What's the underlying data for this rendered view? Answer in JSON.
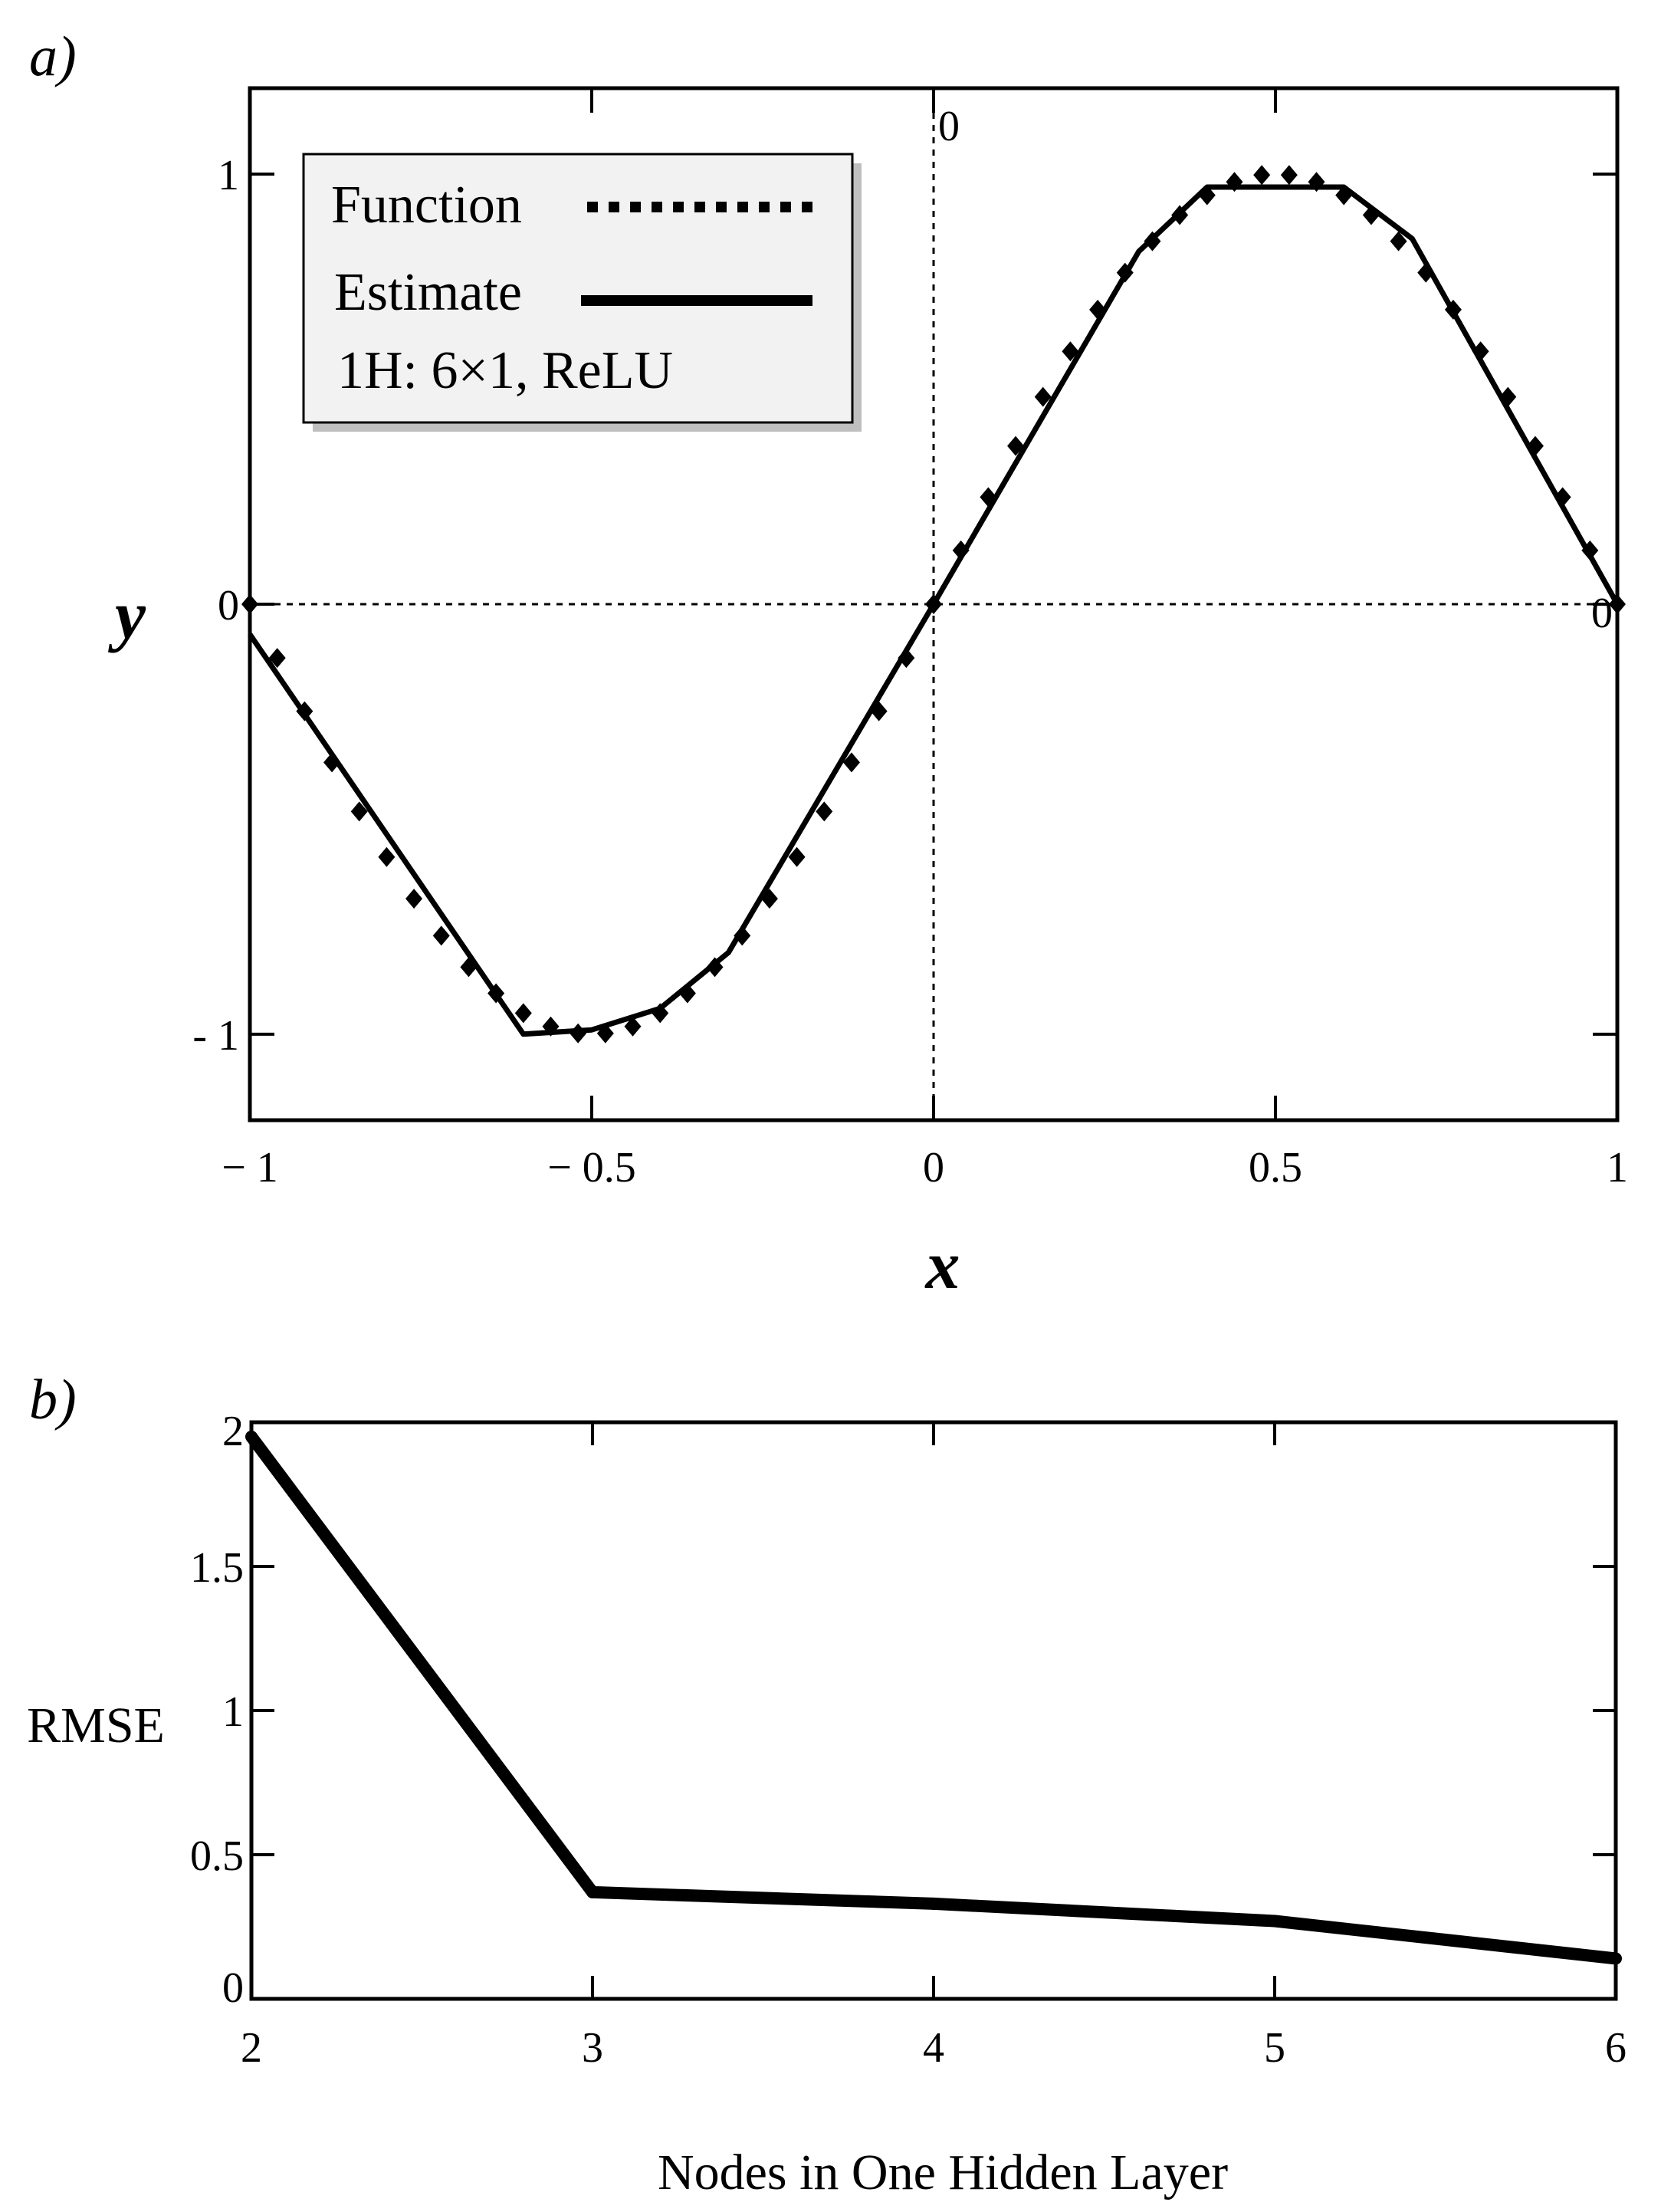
{
  "chart_data": [
    {
      "panel": "a)",
      "type": "line",
      "xlabel": "x",
      "ylabel": "y",
      "xlim": [
        -1,
        1
      ],
      "ylim": [
        -1.2,
        1.2
      ],
      "xticks": [
        "− 1",
        "− 0.5",
        "0",
        "0.5",
        "1"
      ],
      "yticks": [
        "- 1",
        "0",
        "1"
      ],
      "zero_markers": [
        "0",
        "0"
      ],
      "grid": false,
      "legend_position": "top-left",
      "legend": {
        "entries": [
          "Function",
          "Estimate"
        ],
        "note": "1H: 6×1, ReLU"
      },
      "series": [
        {
          "name": "Function",
          "style": "dotted",
          "x": [
            -1,
            -0.96,
            -0.92,
            -0.88,
            -0.84,
            -0.8,
            -0.76,
            -0.72,
            -0.68,
            -0.64,
            -0.6,
            -0.56,
            -0.52,
            -0.48,
            -0.44,
            -0.4,
            -0.36,
            -0.32,
            -0.28,
            -0.24,
            -0.2,
            -0.16,
            -0.12,
            -0.08,
            -0.04,
            0,
            0.04,
            0.08,
            0.12,
            0.16,
            0.2,
            0.24,
            0.28,
            0.32,
            0.36,
            0.4,
            0.44,
            0.48,
            0.52,
            0.56,
            0.6,
            0.64,
            0.68,
            0.72,
            0.76,
            0.8,
            0.84,
            0.88,
            0.92,
            0.96,
            1
          ],
          "y": [
            0,
            -0.125,
            -0.249,
            -0.368,
            -0.482,
            -0.588,
            -0.685,
            -0.771,
            -0.844,
            -0.905,
            -0.951,
            -0.982,
            -0.998,
            -0.998,
            -0.982,
            -0.951,
            -0.905,
            -0.844,
            -0.771,
            -0.685,
            -0.588,
            -0.482,
            -0.368,
            -0.249,
            -0.125,
            0,
            0.125,
            0.249,
            0.368,
            0.482,
            0.588,
            0.685,
            0.771,
            0.844,
            0.905,
            0.951,
            0.982,
            0.998,
            0.998,
            0.982,
            0.951,
            0.905,
            0.844,
            0.771,
            0.685,
            0.588,
            0.482,
            0.368,
            0.249,
            0.125,
            0
          ]
        },
        {
          "name": "Estimate",
          "style": "solid",
          "x": [
            -1,
            -0.6,
            -0.5,
            -0.4,
            -0.3,
            0,
            0.3,
            0.4,
            0.6,
            0.7,
            1
          ],
          "y": [
            -0.07,
            -1.0,
            -0.99,
            -0.94,
            -0.81,
            0,
            0.82,
            0.97,
            0.97,
            0.85,
            0
          ]
        }
      ]
    },
    {
      "panel": "b)",
      "type": "line",
      "xlabel": "Nodes in One Hidden Layer",
      "ylabel": "RMSE",
      "xlim": [
        2,
        6
      ],
      "ylim": [
        0,
        2
      ],
      "xticks": [
        "2",
        "3",
        "4",
        "5",
        "6"
      ],
      "yticks": [
        "0",
        "0.5",
        "1",
        "1.5",
        "2"
      ],
      "grid": false,
      "series": [
        {
          "x": [
            2,
            3,
            4,
            5,
            6
          ],
          "y": [
            1.95,
            0.37,
            0.33,
            0.27,
            0.14
          ]
        }
      ]
    }
  ]
}
